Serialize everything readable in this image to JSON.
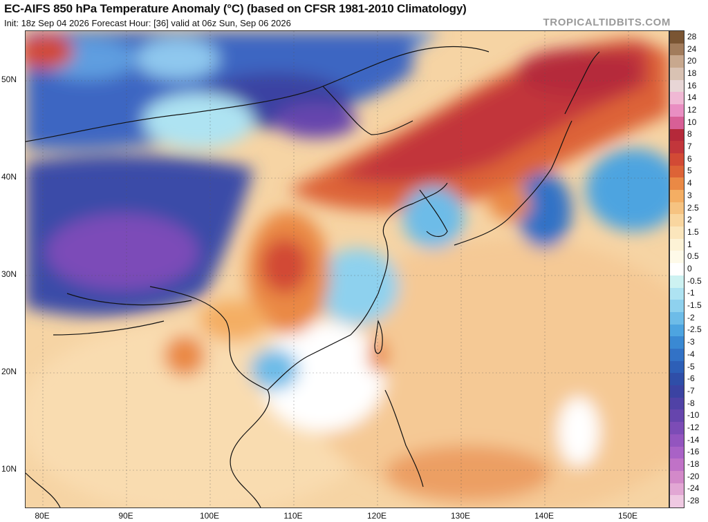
{
  "header": {
    "title": "EC-AIFS 850 hPa Temperature Anomaly (°C) (based on CFSR 1981-2010 Climatology)",
    "subtitle": "Init: 18z Sep 04 2026   Forecast Hour: [36]   valid at 06z Sun, Sep 06 2026",
    "credit": "TROPICALTIDBITS.COM"
  },
  "map": {
    "lat_labels": [
      "50N",
      "40N",
      "30N",
      "20N",
      "10N"
    ],
    "lon_labels": [
      "80E",
      "90E",
      "100E",
      "110E",
      "120E",
      "130E",
      "140E",
      "150E"
    ]
  },
  "colorbar": {
    "labels": [
      "28",
      "24",
      "20",
      "18",
      "16",
      "14",
      "12",
      "10",
      "8",
      "7",
      "6",
      "5",
      "4",
      "3",
      "2.5",
      "2",
      "1.5",
      "1",
      "0.5",
      "0",
      "-0.5",
      "-1",
      "-1.5",
      "-2",
      "-2.5",
      "-3",
      "-4",
      "-5",
      "-6",
      "-7",
      "-8",
      "-10",
      "-12",
      "-14",
      "-16",
      "-18",
      "-20",
      "-24",
      "-28"
    ],
    "colors": [
      "#7a5533",
      "#a27c5c",
      "#c8a88e",
      "#d9c2b3",
      "#e8d6d6",
      "#f0b8d4",
      "#e98ec2",
      "#d85f96",
      "#b5293a",
      "#c2363b",
      "#d24a35",
      "#dd6337",
      "#ea8945",
      "#f4ae63",
      "#f6c381",
      "#f9d69f",
      "#fbe6bc",
      "#fdf3d6",
      "#fefae9",
      "#ffffff",
      "#cdf2f2",
      "#aee3f2",
      "#8ed1ee",
      "#6dbce8",
      "#4da4e0",
      "#3a89d3",
      "#3272c6",
      "#2d5fb7",
      "#2f4ea8",
      "#3b43a2",
      "#5042a6",
      "#6645ad",
      "#7c4cb6",
      "#9355bf",
      "#a962c6",
      "#c072c7",
      "#d389c9",
      "#e2a7d4",
      "#efc9e2"
    ]
  }
}
